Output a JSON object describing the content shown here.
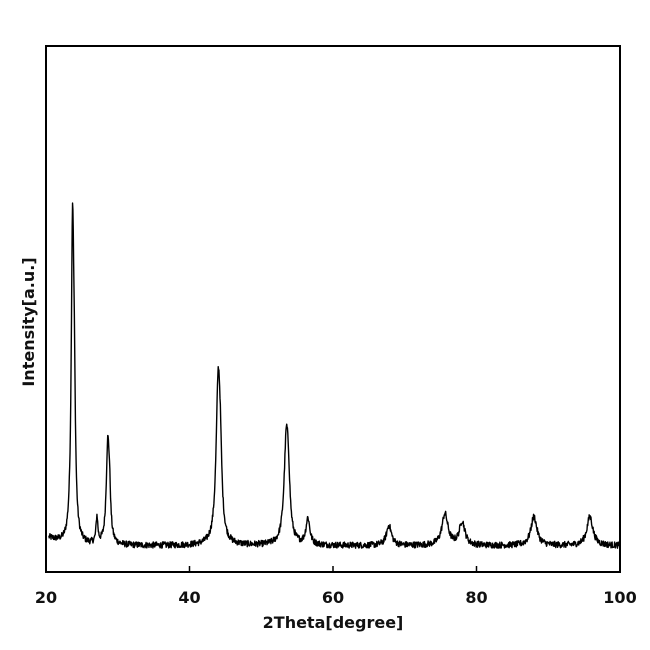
{
  "chart_data": {
    "type": "line",
    "title": "",
    "xlabel": "2Theta[degree]",
    "ylabel": "Intensity[a.u.]",
    "xlim": [
      20,
      100
    ],
    "ylim": [
      0,
      100
    ],
    "xticks": [
      20,
      40,
      60,
      80,
      100
    ],
    "yticks_shown": false,
    "grid": false,
    "legend": "none",
    "line_color": "#000000",
    "baseline": 5,
    "peaks": [
      {
        "x": 23.7,
        "height": 59,
        "width": 0.22
      },
      {
        "x": 23.95,
        "height": 18,
        "width": 0.18
      },
      {
        "x": 27.1,
        "height": 5,
        "width": 0.15
      },
      {
        "x": 28.6,
        "height": 18,
        "width": 0.25
      },
      {
        "x": 28.85,
        "height": 7,
        "width": 0.18
      },
      {
        "x": 44.0,
        "height": 30,
        "width": 0.35
      },
      {
        "x": 44.3,
        "height": 9,
        "width": 0.25
      },
      {
        "x": 53.5,
        "height": 20,
        "width": 0.38
      },
      {
        "x": 53.8,
        "height": 6,
        "width": 0.25
      },
      {
        "x": 56.5,
        "height": 5,
        "width": 0.32
      },
      {
        "x": 67.8,
        "height": 3.8,
        "width": 0.42
      },
      {
        "x": 75.6,
        "height": 6,
        "width": 0.5
      },
      {
        "x": 78.0,
        "height": 4.5,
        "width": 0.45
      },
      {
        "x": 88.0,
        "height": 5.5,
        "width": 0.5
      },
      {
        "x": 95.8,
        "height": 5.5,
        "width": 0.5
      }
    ],
    "noise_amplitude": 0.6
  }
}
